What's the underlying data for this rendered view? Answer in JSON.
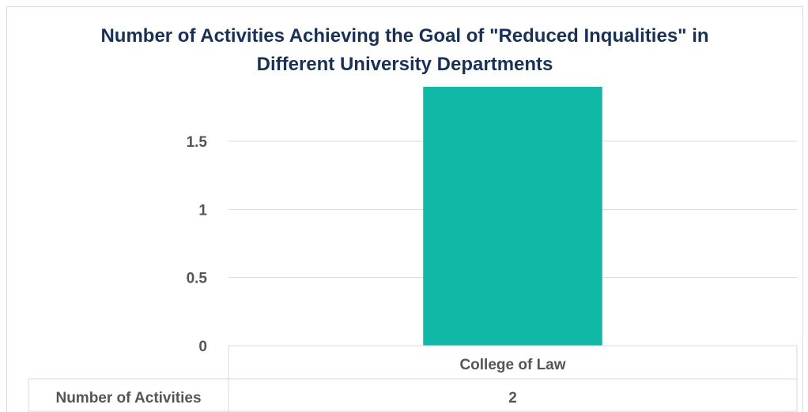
{
  "chart_data": {
    "type": "bar",
    "title": "Number of Activities Achieving the Goal of \"Reduced Inqualities\" in\nDifferent University Departments",
    "categories": [
      "College of Law"
    ],
    "series": [
      {
        "name": "Number of Activities",
        "values": [
          2
        ]
      }
    ],
    "ylim": [
      0,
      1.9
    ],
    "yticks": [
      "0",
      "0.5",
      "1",
      "1.5"
    ],
    "ytick_values": [
      0,
      0.5,
      1,
      1.5
    ],
    "grid": true,
    "data_table": true,
    "table_rows": [
      {
        "label": "Number of Activities",
        "cells": [
          "2"
        ]
      }
    ],
    "bar_color": "#12b8a6",
    "grid_color": "#d9d9d9",
    "title_color": "#17305c",
    "text_color": "#555555"
  }
}
